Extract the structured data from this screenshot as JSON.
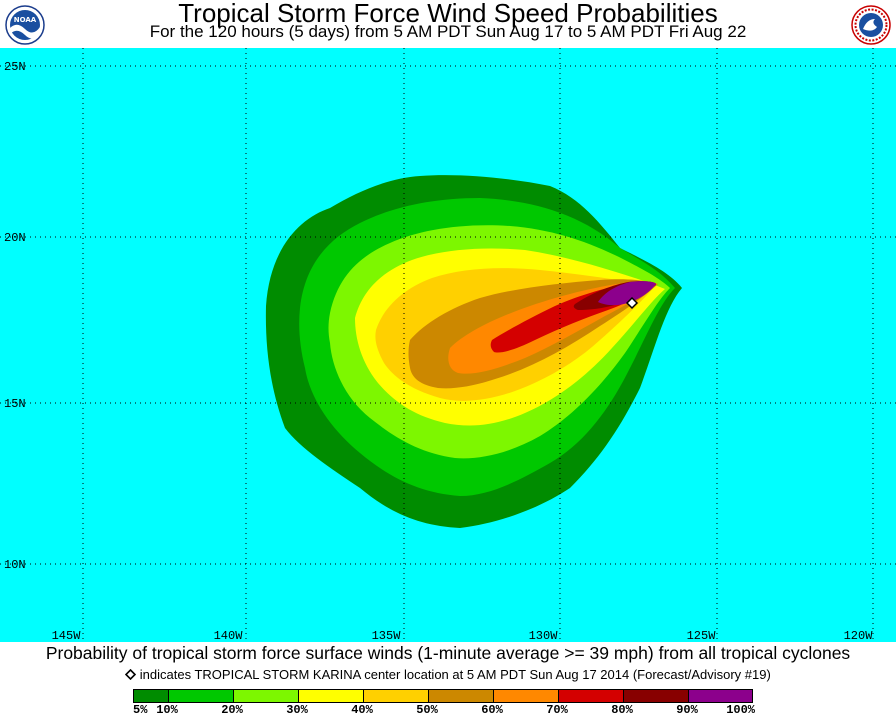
{
  "header": {
    "title": "Tropical Storm Force Wind Speed Probabilities",
    "subtitle": "For the 120 hours (5 days) from 5 AM PDT Sun Aug 17 to 5 AM PDT Fri Aug 22",
    "left_logo": "NOAA",
    "right_logo_text": "NATIONAL WEATHER SERVICE"
  },
  "map": {
    "ocean_color": "#00ffff",
    "lat_labels": [
      "25N",
      "20N",
      "15N",
      "10N"
    ],
    "lon_labels": [
      "145W",
      "140W",
      "135W",
      "130W",
      "125W",
      "120W"
    ],
    "center_marker": "storm-center-diamond"
  },
  "caption": {
    "main": "Probability of tropical storm force surface winds (1-minute average >= 39 mph) from all tropical cyclones",
    "note": "indicates TROPICAL STORM KARINA center location at 5 AM PDT Sun Aug 17 2014 (Forecast/Advisory #19)"
  },
  "legend": {
    "labels": [
      "5%",
      "10%",
      "20%",
      "30%",
      "40%",
      "50%",
      "60%",
      "70%",
      "80%",
      "90%",
      "100%"
    ],
    "colors": [
      "#008c00",
      "#00c800",
      "#7df700",
      "#ffff00",
      "#ffd000",
      "#cc8800",
      "#ff8800",
      "#d40000",
      "#880000",
      "#8c008c"
    ]
  }
}
